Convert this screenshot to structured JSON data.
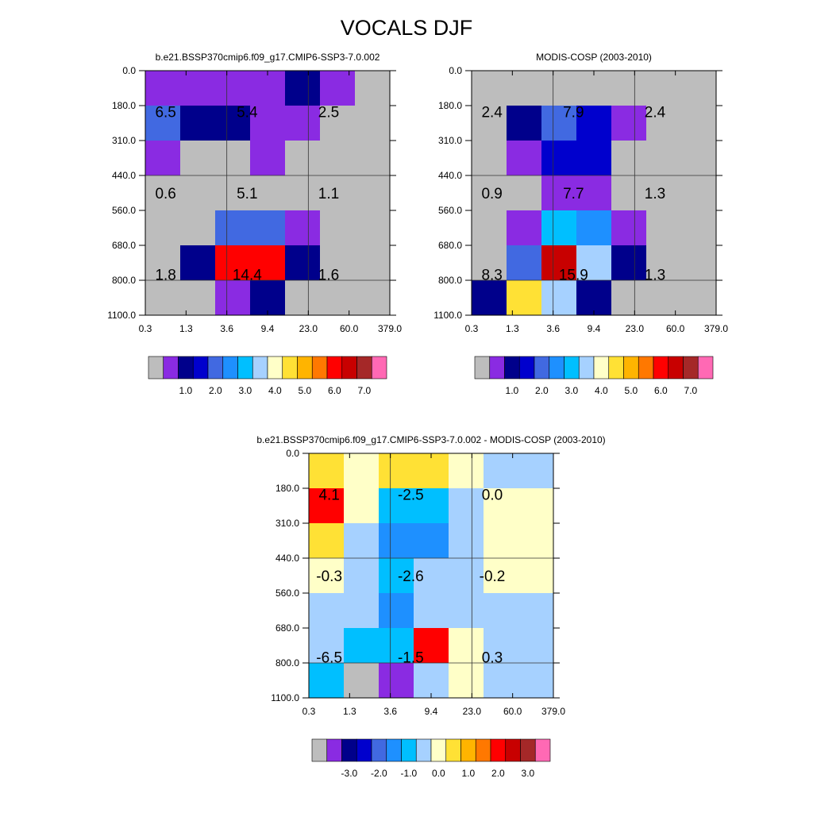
{
  "page": {
    "title": "VOCALS DJF"
  },
  "palette": [
    "#bdbdbd",
    "#8a2be2",
    "#00008b",
    "#0000cd",
    "#4169e1",
    "#1e90ff",
    "#00bfff",
    "#a6d1ff",
    "#ffffc8",
    "#ffe135",
    "#ffb400",
    "#ff7800",
    "#ff0000",
    "#c80000",
    "#a52828",
    "#ff69b4"
  ],
  "chart_data": [
    {
      "type": "heatmap",
      "title": "b.e21.BSSP370cmip6.f09_g17.CMIP6-SSP3-7.0.002",
      "x_ticks": [
        "0.3",
        "1.3",
        "3.6",
        "9.4",
        "23.0",
        "60.0",
        "379.0"
      ],
      "y_ticks": [
        "0.0",
        "180.0",
        "310.0",
        "440.0",
        "560.0",
        "680.0",
        "800.0",
        "1100.0"
      ],
      "cell_colors": [
        [
          1,
          1,
          1,
          1,
          2,
          1,
          0
        ],
        [
          4,
          2,
          2,
          1,
          1,
          0,
          0
        ],
        [
          1,
          0,
          0,
          1,
          0,
          0,
          0
        ],
        [
          0,
          0,
          0,
          0,
          0,
          0,
          0
        ],
        [
          0,
          0,
          4,
          4,
          1,
          0,
          0
        ],
        [
          0,
          2,
          12,
          12,
          2,
          0,
          0
        ],
        [
          0,
          0,
          1,
          2,
          0,
          0,
          0
        ]
      ],
      "annotations": [
        {
          "text": "6.5",
          "col": 0,
          "row": 0
        },
        {
          "text": "5.4",
          "col": 1,
          "row": 0
        },
        {
          "text": "2.5",
          "col": 2,
          "row": 0
        },
        {
          "text": "0.6",
          "col": 0,
          "row": 1
        },
        {
          "text": "5.1",
          "col": 1,
          "row": 1
        },
        {
          "text": "1.1",
          "col": 2,
          "row": 1
        },
        {
          "text": "1.8",
          "col": 0,
          "row": 2
        },
        {
          "text": "14.4",
          "col": 1,
          "row": 2
        },
        {
          "text": "1.6",
          "col": 2,
          "row": 2
        }
      ],
      "colorbar_labels": [
        "1.0",
        "2.0",
        "3.0",
        "4.0",
        "5.0",
        "6.0",
        "7.0"
      ]
    },
    {
      "type": "heatmap",
      "title": "MODIS-COSP (2003-2010)",
      "x_ticks": [
        "0.3",
        "1.3",
        "3.6",
        "9.4",
        "23.0",
        "60.0",
        "379.0"
      ],
      "y_ticks": [
        "0.0",
        "180.0",
        "310.0",
        "440.0",
        "560.0",
        "680.0",
        "800.0",
        "1100.0"
      ],
      "cell_colors": [
        [
          0,
          0,
          0,
          0,
          0,
          0,
          0
        ],
        [
          0,
          2,
          4,
          3,
          1,
          0,
          0
        ],
        [
          0,
          1,
          3,
          3,
          0,
          0,
          0
        ],
        [
          0,
          0,
          1,
          1,
          0,
          0,
          0
        ],
        [
          0,
          1,
          6,
          5,
          1,
          0,
          0
        ],
        [
          0,
          4,
          13,
          7,
          2,
          0,
          0
        ],
        [
          2,
          9,
          7,
          2,
          0,
          0,
          0
        ]
      ],
      "annotations": [
        {
          "text": "2.4",
          "col": 0,
          "row": 0
        },
        {
          "text": "7.9",
          "col": 1,
          "row": 0
        },
        {
          "text": "2.4",
          "col": 2,
          "row": 0
        },
        {
          "text": "0.9",
          "col": 0,
          "row": 1
        },
        {
          "text": "7.7",
          "col": 1,
          "row": 1
        },
        {
          "text": "1.3",
          "col": 2,
          "row": 1
        },
        {
          "text": "8.3",
          "col": 0,
          "row": 2
        },
        {
          "text": "15.9",
          "col": 1,
          "row": 2
        },
        {
          "text": "1.3",
          "col": 2,
          "row": 2
        }
      ],
      "colorbar_labels": [
        "1.0",
        "2.0",
        "3.0",
        "4.0",
        "5.0",
        "6.0",
        "7.0"
      ]
    },
    {
      "type": "heatmap",
      "title": "b.e21.BSSP370cmip6.f09_g17.CMIP6-SSP3-7.0.002 - MODIS-COSP (2003-2010)",
      "x_ticks": [
        "0.3",
        "1.3",
        "3.6",
        "9.4",
        "23.0",
        "60.0",
        "379.0"
      ],
      "y_ticks": [
        "0.0",
        "180.0",
        "310.0",
        "440.0",
        "560.0",
        "680.0",
        "800.0",
        "1100.0"
      ],
      "cell_colors": [
        [
          9,
          8,
          9,
          9,
          8,
          7,
          7
        ],
        [
          12,
          8,
          6,
          6,
          7,
          8,
          8
        ],
        [
          9,
          7,
          5,
          5,
          7,
          8,
          8
        ],
        [
          8,
          7,
          6,
          7,
          7,
          8,
          8
        ],
        [
          7,
          7,
          5,
          7,
          7,
          7,
          7
        ],
        [
          7,
          6,
          6,
          12,
          8,
          7,
          7
        ],
        [
          6,
          0,
          1,
          7,
          8,
          7,
          7
        ]
      ],
      "annotations": [
        {
          "text": "4.1",
          "col": 0,
          "row": 0
        },
        {
          "text": "-2.5",
          "col": 1,
          "row": 0
        },
        {
          "text": "0.0",
          "col": 2,
          "row": 0
        },
        {
          "text": "-0.3",
          "col": 0,
          "row": 1
        },
        {
          "text": "-2.6",
          "col": 1,
          "row": 1
        },
        {
          "text": "-0.2",
          "col": 2,
          "row": 1
        },
        {
          "text": "-6.5",
          "col": 0,
          "row": 2
        },
        {
          "text": "-1.5",
          "col": 1,
          "row": 2
        },
        {
          "text": "0.3",
          "col": 2,
          "row": 2
        }
      ],
      "colorbar_labels": [
        "-3.0",
        "-2.0",
        "-1.0",
        "0.0",
        "1.0",
        "2.0",
        "3.0"
      ]
    }
  ]
}
